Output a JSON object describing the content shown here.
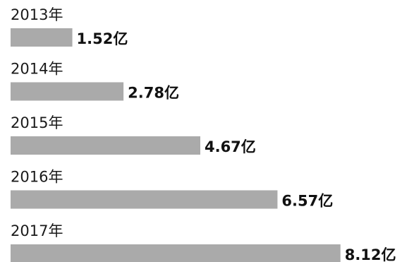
{
  "chart_data": {
    "type": "bar",
    "orientation": "horizontal",
    "categories": [
      "2013年",
      "2014年",
      "2015年",
      "2016年",
      "2017年"
    ],
    "values": [
      1.52,
      2.78,
      4.67,
      6.57,
      8.12
    ],
    "value_labels": [
      "1.52亿",
      "2.78亿",
      "4.67亿",
      "6.57亿",
      "8.12亿"
    ],
    "title": "",
    "xlabel": "",
    "ylabel": "",
    "grid": false,
    "legend": "none",
    "bar_color": "#aaaaaa"
  }
}
